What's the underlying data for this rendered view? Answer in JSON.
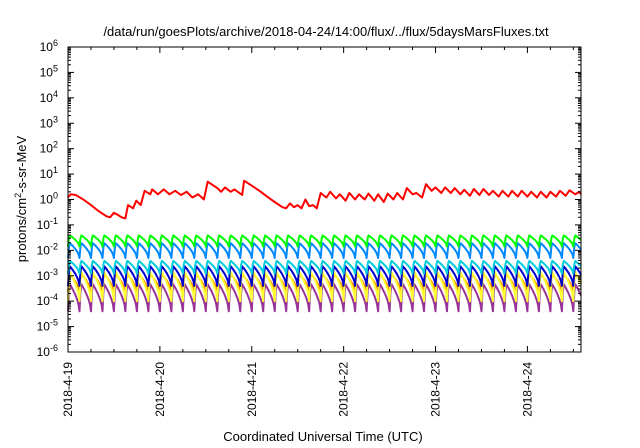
{
  "chart_data": {
    "type": "line",
    "title": "/data/run/goesPlots/archive/2018-04-24/14:00/flux/../flux/5daysMarsFluxes.txt",
    "xlabel": "Coordinated Universal Time (UTC)",
    "ylabel_prefix": "protons/cm",
    "ylabel_sup": "2",
    "ylabel_suffix": "-s-sr-MeV",
    "y_scale": "log",
    "ylim": [
      1e-06,
      1000000.0
    ],
    "y_ticks": [
      {
        "base": "10",
        "exp": "-6"
      },
      {
        "base": "10",
        "exp": "-5"
      },
      {
        "base": "10",
        "exp": "-4"
      },
      {
        "base": "10",
        "exp": "-3"
      },
      {
        "base": "10",
        "exp": "-2"
      },
      {
        "base": "10",
        "exp": "-1"
      },
      {
        "base": "10",
        "exp": "0"
      },
      {
        "base": "10",
        "exp": "1"
      },
      {
        "base": "10",
        "exp": "2"
      },
      {
        "base": "10",
        "exp": "3"
      },
      {
        "base": "10",
        "exp": "4"
      },
      {
        "base": "10",
        "exp": "5"
      },
      {
        "base": "10",
        "exp": "6"
      }
    ],
    "xlim": [
      "2018-04-19 00:00",
      "2018-04-24 14:00"
    ],
    "x_ticks": [
      "2018-4-19",
      "2018-4-20",
      "2018-4-21",
      "2018-4-22",
      "2018-4-23",
      "2018-4-24"
    ],
    "grid": false,
    "legend": "none",
    "series": [
      {
        "color": "#ff0000",
        "pattern": "sawtooth",
        "points": [
          [
            "2018-04-19 00:00",
            1.2
          ],
          [
            "2018-04-19 00:40",
            1.6
          ],
          [
            "2018-04-19 02:00",
            1.5
          ],
          [
            "2018-04-19 04:00",
            1.0
          ],
          [
            "2018-04-19 06:00",
            0.6
          ],
          [
            "2018-04-19 08:00",
            0.35
          ],
          [
            "2018-04-19 10:00",
            0.22
          ],
          [
            "2018-04-19 11:00",
            0.2
          ],
          [
            "2018-04-19 12:00",
            0.3
          ],
          [
            "2018-04-19 13:00",
            0.25
          ],
          [
            "2018-04-19 14:00",
            0.2
          ],
          [
            "2018-04-19 15:00",
            0.18
          ],
          [
            "2018-04-19 15:40",
            0.6
          ],
          [
            "2018-04-19 17:00",
            0.45
          ],
          [
            "2018-04-19 17:50",
            0.9
          ],
          [
            "2018-04-19 19:00",
            0.6
          ],
          [
            "2018-04-19 20:00",
            2.2
          ],
          [
            "2018-04-19 21:30",
            1.6
          ],
          [
            "2018-04-19 22:00",
            2.5
          ],
          [
            "2018-04-19 23:30",
            1.6
          ],
          [
            "2018-04-20 01:00",
            2.5
          ],
          [
            "2018-04-20 02:30",
            1.6
          ],
          [
            "2018-04-20 04:00",
            2.2
          ],
          [
            "2018-04-20 05:30",
            1.5
          ],
          [
            "2018-04-20 07:00",
            2.0
          ],
          [
            "2018-04-20 08:30",
            1.2
          ],
          [
            "2018-04-20 10:00",
            1.6
          ],
          [
            "2018-04-20 11:30",
            1.0
          ],
          [
            "2018-04-20 12:30",
            5.0
          ],
          [
            "2018-04-20 15:00",
            2.8
          ],
          [
            "2018-04-20 16:00",
            2.0
          ],
          [
            "2018-04-20 17:00",
            3.0
          ],
          [
            "2018-04-20 18:30",
            2.0
          ],
          [
            "2018-04-20 19:30",
            2.5
          ],
          [
            "2018-04-20 21:30",
            1.5
          ],
          [
            "2018-04-20 22:00",
            5.5
          ],
          [
            "2018-04-21 00:00",
            3.5
          ],
          [
            "2018-04-21 02:00",
            2.2
          ],
          [
            "2018-04-21 04:00",
            1.3
          ],
          [
            "2018-04-21 06:00",
            0.8
          ],
          [
            "2018-04-21 08:00",
            0.5
          ],
          [
            "2018-04-21 09:00",
            0.45
          ],
          [
            "2018-04-21 10:00",
            0.7
          ],
          [
            "2018-04-21 11:00",
            0.5
          ],
          [
            "2018-04-21 12:00",
            0.6
          ],
          [
            "2018-04-21 13:00",
            0.45
          ],
          [
            "2018-04-21 14:00",
            1.0
          ],
          [
            "2018-04-21 15:00",
            0.55
          ],
          [
            "2018-04-21 16:00",
            0.6
          ],
          [
            "2018-04-21 17:00",
            0.45
          ],
          [
            "2018-04-21 18:00",
            1.8
          ],
          [
            "2018-04-21 19:30",
            1.2
          ],
          [
            "2018-04-21 20:30",
            2.0
          ],
          [
            "2018-04-21 22:00",
            1.1
          ],
          [
            "2018-04-21 23:00",
            1.6
          ],
          [
            "2018-04-22 00:30",
            0.9
          ],
          [
            "2018-04-22 01:30",
            1.8
          ],
          [
            "2018-04-22 03:00",
            1.0
          ],
          [
            "2018-04-22 04:00",
            1.6
          ],
          [
            "2018-04-22 05:30",
            1.0
          ],
          [
            "2018-04-22 06:30",
            1.7
          ],
          [
            "2018-04-22 08:00",
            0.9
          ],
          [
            "2018-04-22 09:00",
            1.6
          ],
          [
            "2018-04-22 10:30",
            0.8
          ],
          [
            "2018-04-22 11:30",
            1.7
          ],
          [
            "2018-04-22 13:00",
            1.0
          ],
          [
            "2018-04-22 14:00",
            1.8
          ],
          [
            "2018-04-22 15:30",
            1.0
          ],
          [
            "2018-04-22 16:30",
            2.8
          ],
          [
            "2018-04-22 18:00",
            1.6
          ],
          [
            "2018-04-22 19:00",
            1.8
          ],
          [
            "2018-04-22 20:30",
            1.2
          ],
          [
            "2018-04-22 21:30",
            4.0
          ],
          [
            "2018-04-22 23:00",
            2.2
          ],
          [
            "2018-04-23 00:00",
            3.0
          ],
          [
            "2018-04-23 01:30",
            1.8
          ],
          [
            "2018-04-23 02:30",
            3.0
          ],
          [
            "2018-04-23 04:00",
            1.8
          ],
          [
            "2018-04-23 05:00",
            2.8
          ],
          [
            "2018-04-23 06:30",
            1.6
          ],
          [
            "2018-04-23 07:30",
            2.4
          ],
          [
            "2018-04-23 09:00",
            1.4
          ],
          [
            "2018-04-23 10:00",
            2.6
          ],
          [
            "2018-04-23 11:30",
            1.5
          ],
          [
            "2018-04-23 12:30",
            2.6
          ],
          [
            "2018-04-23 14:00",
            1.5
          ],
          [
            "2018-04-23 15:00",
            2.2
          ],
          [
            "2018-04-23 16:30",
            1.3
          ],
          [
            "2018-04-23 17:30",
            2.2
          ],
          [
            "2018-04-23 19:00",
            1.3
          ],
          [
            "2018-04-23 20:00",
            2.2
          ],
          [
            "2018-04-23 21:30",
            1.3
          ],
          [
            "2018-04-23 22:30",
            2.2
          ],
          [
            "2018-04-24 00:00",
            1.3
          ],
          [
            "2018-04-24 01:00",
            2.0
          ],
          [
            "2018-04-24 02:30",
            1.2
          ],
          [
            "2018-04-24 03:30",
            2.0
          ],
          [
            "2018-04-24 05:00",
            1.2
          ],
          [
            "2018-04-24 06:00",
            2.0
          ],
          [
            "2018-04-24 07:30",
            1.3
          ],
          [
            "2018-04-24 08:30",
            2.2
          ],
          [
            "2018-04-24 10:00",
            1.4
          ],
          [
            "2018-04-24 11:00",
            2.3
          ],
          [
            "2018-04-24 12:30",
            1.6
          ],
          [
            "2018-04-24 13:30",
            2.0
          ],
          [
            "2018-04-24 14:00",
            1.6
          ]
        ]
      },
      {
        "color": "#00ff00",
        "pattern": "periodic",
        "period_hours": 3,
        "start": "2018-04-19 00:00",
        "end": "2018-04-24 14:00",
        "peak": 0.04,
        "trough": 0.014
      },
      {
        "color": "#0088ff",
        "pattern": "periodic",
        "period_hours": 3,
        "start": "2018-04-19 00:00",
        "end": "2018-04-24 14:00",
        "peak": 0.02,
        "trough": 0.005
      },
      {
        "color": "#00ccdd",
        "pattern": "periodic",
        "period_hours": 3,
        "start": "2018-04-19 00:00",
        "end": "2018-04-24 14:00",
        "peak": 0.004,
        "trough": 0.0012
      },
      {
        "color": "#0000cc",
        "pattern": "periodic",
        "period_hours": 3,
        "start": "2018-04-19 00:00",
        "end": "2018-04-24 14:00",
        "peak": 0.0025,
        "trough": 0.0004
      },
      {
        "color": "#ffff33",
        "pattern": "periodic",
        "period_hours": 3,
        "start": "2018-04-19 00:00",
        "end": "2018-04-24 14:00",
        "peak": 0.0015,
        "trough": 0.0001
      },
      {
        "color": "#ff8800",
        "pattern": "periodic",
        "period_hours": 3,
        "start": "2018-04-19 00:00",
        "end": "2018-04-24 14:00",
        "peak": 0.0012,
        "trough": 0.00022
      },
      {
        "color": "#993399",
        "pattern": "periodic",
        "period_hours": 3,
        "start": "2018-04-19 00:00",
        "end": "2018-04-24 14:00",
        "peak": 0.0005,
        "trough": 4e-05
      }
    ]
  }
}
